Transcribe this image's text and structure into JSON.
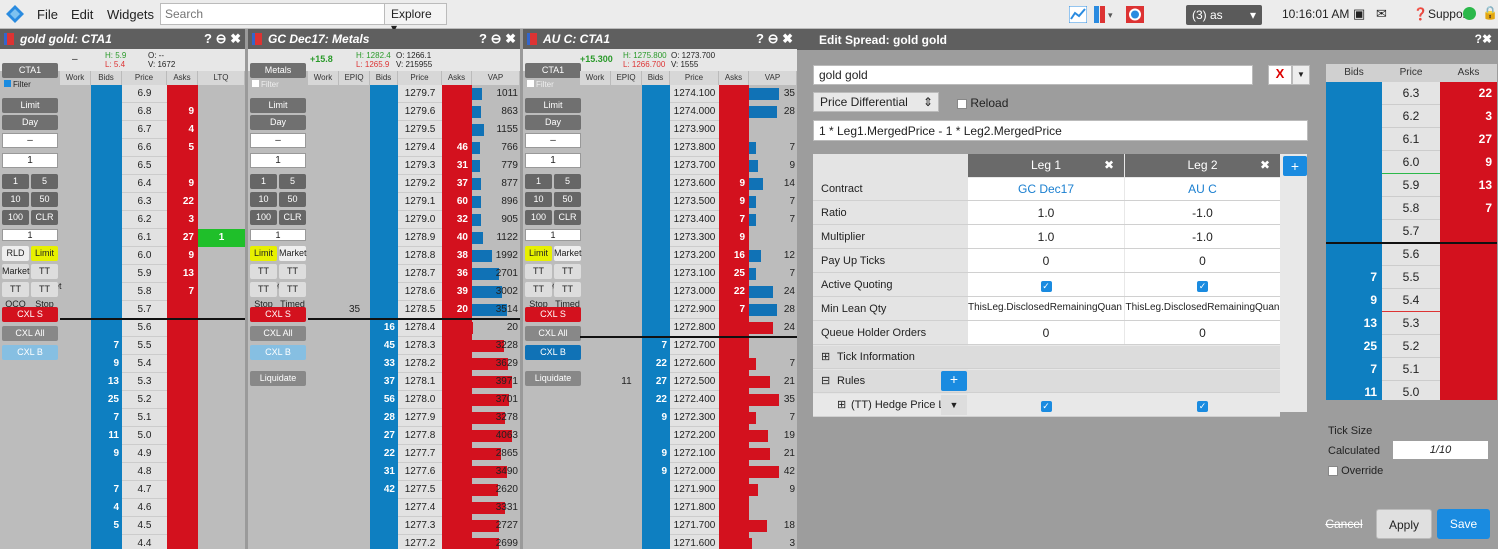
{
  "menu": {
    "file": "File",
    "edit": "Edit",
    "widgets": "Widgets",
    "search_placeholder": "Search",
    "explore": "Explore ▾",
    "combo": "(3) as",
    "clock": "10:16:01 AM",
    "support": "Support"
  },
  "ladders": [
    {
      "title": "gold gold: CTA1",
      "hi": "H: 5.9",
      "lo": "L: 5.4",
      "open": "O: --",
      "vol": "V: 1672",
      "dash": "–",
      "cols": [
        "Work",
        "Bids",
        "Price",
        "Asks",
        "LTQ"
      ],
      "acct": "CTA1",
      "ltq_row": 8,
      "ltq": "1",
      "rows": [
        [
          "",
          "6.9",
          ""
        ],
        [
          "",
          "6.8",
          "9"
        ],
        [
          "",
          "6.7",
          "4"
        ],
        [
          "",
          "6.6",
          "5"
        ],
        [
          "",
          "6.5",
          ""
        ],
        [
          "",
          "6.4",
          "9"
        ],
        [
          "",
          "6.3",
          "22"
        ],
        [
          "",
          "6.2",
          "3"
        ],
        [
          "",
          "6.1",
          "27"
        ],
        [
          "",
          "6.0",
          "9"
        ],
        [
          "",
          "5.9",
          "13"
        ],
        [
          "",
          "5.8",
          "7"
        ],
        [
          "",
          "5.7",
          ""
        ],
        [
          "",
          "5.6",
          ""
        ],
        [
          "7",
          "5.5",
          ""
        ],
        [
          "9",
          "5.4",
          ""
        ],
        [
          "13",
          "5.3",
          ""
        ],
        [
          "25",
          "5.2",
          ""
        ],
        [
          "7",
          "5.1",
          ""
        ],
        [
          "11",
          "5.0",
          ""
        ],
        [
          "9",
          "4.9",
          ""
        ],
        [
          "",
          "4.8",
          ""
        ],
        [
          "7",
          "4.7",
          ""
        ],
        [
          "4",
          "4.6",
          ""
        ],
        [
          "5",
          "4.5",
          ""
        ],
        [
          "",
          "4.4",
          ""
        ]
      ]
    },
    {
      "title": "GC Dec17: Metals",
      "chg": "+15.8",
      "hi": "H: 1282.4",
      "lo": "L: 1265.9",
      "open": "O: 1266.1",
      "vol": "V: 215955",
      "cols": [
        "Work",
        "EPIQ",
        "Bids",
        "Price",
        "Asks",
        "VAP"
      ],
      "acct": "Metals",
      "epiq_row": 12,
      "epiq": "35",
      "rows": [
        [
          "",
          "1279.7",
          "",
          "1011"
        ],
        [
          "",
          "1279.6",
          "",
          "863"
        ],
        [
          "",
          "1279.5",
          "",
          "1155"
        ],
        [
          "",
          "1279.4",
          "46",
          "766"
        ],
        [
          "",
          "1279.3",
          "31",
          "779"
        ],
        [
          "",
          "1279.2",
          "37",
          "877"
        ],
        [
          "",
          "1279.1",
          "60",
          "896"
        ],
        [
          "",
          "1279.0",
          "32",
          "905"
        ],
        [
          "",
          "1278.9",
          "40",
          "1122"
        ],
        [
          "",
          "1278.8",
          "38",
          "1992"
        ],
        [
          "",
          "1278.7",
          "36",
          "2701"
        ],
        [
          "",
          "1278.6",
          "39",
          "3002"
        ],
        [
          "",
          "1278.5",
          "20",
          "3514"
        ],
        [
          "16",
          "1278.4",
          "",
          "20"
        ],
        [
          "45",
          "1278.3",
          "",
          "3228"
        ],
        [
          "33",
          "1278.2",
          "",
          "3629"
        ],
        [
          "37",
          "1278.1",
          "",
          "3971"
        ],
        [
          "56",
          "1278.0",
          "",
          "3701"
        ],
        [
          "28",
          "1277.9",
          "",
          "3278"
        ],
        [
          "27",
          "1277.8",
          "",
          "4063"
        ],
        [
          "22",
          "1277.7",
          "",
          "2865"
        ],
        [
          "31",
          "1277.6",
          "",
          "3490"
        ],
        [
          "42",
          "1277.5",
          "",
          "2620"
        ],
        [
          "",
          "1277.4",
          "",
          "3331"
        ],
        [
          "",
          "1277.3",
          "",
          "2727"
        ],
        [
          "",
          "1277.2",
          "",
          "2699"
        ]
      ]
    },
    {
      "title": "AU C: CTA1",
      "chg": "+15.300",
      "hi": "H: 1275.800",
      "lo": "L: 1266.700",
      "open": "O: 1273.700",
      "vol": "V: 1555",
      "cols": [
        "Work",
        "EPIQ",
        "Bids",
        "Price",
        "Asks",
        "VAP"
      ],
      "acct": "CTA1",
      "epiq_row": 16,
      "epiq": "11",
      "rows": [
        [
          "",
          "1274.100",
          "",
          "35"
        ],
        [
          "",
          "1274.000",
          "",
          "28"
        ],
        [
          "",
          "1273.900",
          "",
          ""
        ],
        [
          "",
          "1273.800",
          "",
          "7"
        ],
        [
          "",
          "1273.700",
          "",
          "9"
        ],
        [
          "",
          "1273.600",
          "9",
          "14"
        ],
        [
          "",
          "1273.500",
          "9",
          "7"
        ],
        [
          "",
          "1273.400",
          "7",
          "7"
        ],
        [
          "",
          "1273.300",
          "9",
          ""
        ],
        [
          "",
          "1273.200",
          "16",
          "12"
        ],
        [
          "",
          "1273.100",
          "25",
          "7"
        ],
        [
          "",
          "1273.000",
          "22",
          "24"
        ],
        [
          "",
          "1272.900",
          "7",
          "28"
        ],
        [
          "",
          "1272.800",
          "",
          "24"
        ],
        [
          "7",
          "1272.700",
          "",
          ""
        ],
        [
          "22",
          "1272.600",
          "",
          "7"
        ],
        [
          "27",
          "1272.500",
          "",
          "21"
        ],
        [
          "22",
          "1272.400",
          "",
          "35"
        ],
        [
          "9",
          "1272.300",
          "",
          "7"
        ],
        [
          "",
          "1272.200",
          "",
          "19"
        ],
        [
          "9",
          "1272.100",
          "",
          "21"
        ],
        [
          "9",
          "1272.000",
          "",
          "42"
        ],
        [
          "",
          "1271.900",
          "",
          "9"
        ],
        [
          "",
          "1271.800",
          "",
          ""
        ],
        [
          "",
          "1271.700",
          "",
          "18"
        ],
        [
          "",
          "1271.600",
          "",
          "3"
        ]
      ]
    }
  ],
  "ctrl": {
    "limit": "Limit",
    "day": "Day",
    "minus": "–",
    "qty": "1",
    "b1": "1",
    "b5": "5",
    "b10": "10",
    "b50": "50",
    "b100": "100",
    "clr": "CLR",
    "rld": "RLD",
    "limitbtn": "Limit",
    "market": "Market",
    "ttbracket": "TT Bracket",
    "ttoco": "TT OCO",
    "ttstop": "TT Stop",
    "tttimed": "TT Timed",
    "cxls": "CXL S",
    "cxlall": "CXL All",
    "cxlb": "CXL B",
    "liquidate": "Liquidate",
    "filter": "Filter"
  },
  "edit": {
    "title": "Edit Spread: gold gold",
    "name": "gold gold",
    "x": "X",
    "pd": "Price Differential",
    "reload": "Reload",
    "formula": "1 * Leg1.MergedPrice - 1 * Leg2.MergedPrice",
    "leg1": "Leg 1",
    "leg2": "Leg 2",
    "rows": [
      {
        "label": "Contract",
        "v1": "GC Dec17",
        "v2": "AU C"
      },
      {
        "label": "Ratio",
        "v1": "1.0",
        "v2": "-1.0"
      },
      {
        "label": "Multiplier",
        "v1": "1.0",
        "v2": "-1.0"
      },
      {
        "label": "Pay Up Ticks",
        "v1": "0",
        "v2": "0"
      },
      {
        "label": "Active Quoting",
        "v1": "",
        "v2": ""
      },
      {
        "label": "Min Lean Qty",
        "v1": "ThisLeg.DisclosedRemainingQuan",
        "v2": "ThisLeg.DisclosedRemainingQuan"
      },
      {
        "label": "Queue Holder Orders",
        "v1": "0",
        "v2": "0"
      }
    ],
    "tickinfo": "Tick Information",
    "rules": "Rules",
    "hedge": "(TT) Hedge Price Li",
    "ticksize": "Tick Size",
    "calculated": "Calculated",
    "calcval": "1/10",
    "override": "Override",
    "cancel": "Cancel",
    "apply": "Apply",
    "save": "Save",
    "rl_cols": [
      "Bids",
      "Price",
      "Asks"
    ],
    "rl": [
      [
        "",
        "6.3",
        "22"
      ],
      [
        "",
        "6.2",
        "3"
      ],
      [
        "",
        "6.1",
        "27"
      ],
      [
        "",
        "6.0",
        "9"
      ],
      [
        "",
        "5.9",
        "13"
      ],
      [
        "",
        "5.8",
        "7"
      ],
      [
        "",
        "5.7",
        ""
      ],
      [
        "",
        "5.6",
        ""
      ],
      [
        "7",
        "5.5",
        ""
      ],
      [
        "9",
        "5.4",
        ""
      ],
      [
        "13",
        "5.3",
        ""
      ],
      [
        "25",
        "5.2",
        ""
      ],
      [
        "7",
        "5.1",
        ""
      ],
      [
        "11",
        "5.0",
        ""
      ],
      [
        "9",
        "4.9",
        ""
      ]
    ]
  }
}
